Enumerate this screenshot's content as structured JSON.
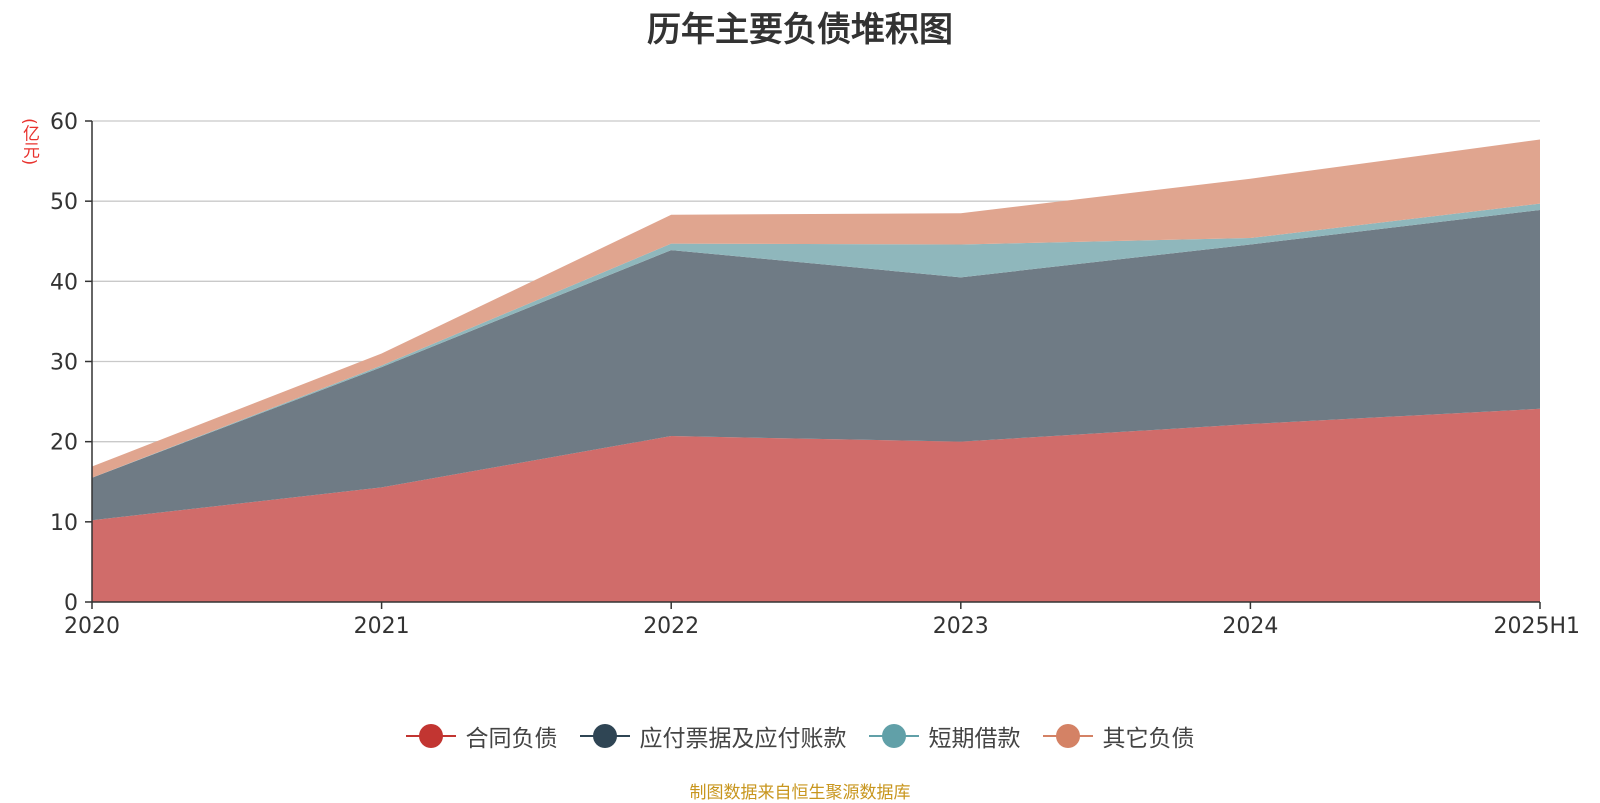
{
  "chart_data": {
    "type": "area",
    "stacked": true,
    "title": "历年主要负债堆积图",
    "y_unit": "(亿元)",
    "source_note": "制图数据来自恒生聚源数据库",
    "categories": [
      "2020",
      "2021",
      "2022",
      "2023",
      "2024",
      "2025H1"
    ],
    "ylim": [
      0,
      60
    ],
    "yticks": [
      0,
      10,
      20,
      30,
      40,
      50,
      60
    ],
    "grid": true,
    "legend_position": "bottom-center",
    "series": [
      {
        "name": "合同负债",
        "color": "#c23531",
        "fill": "#d06c6a",
        "values": [
          10.2,
          14.3,
          20.7,
          20.0,
          22.2,
          24.1
        ]
      },
      {
        "name": "应付票据及应付账款",
        "color": "#2f4554",
        "fill": "#6f7b85",
        "values": [
          5.3,
          15.0,
          23.2,
          20.5,
          22.4,
          24.8
        ]
      },
      {
        "name": "短期借款",
        "color": "#61a0a8",
        "fill": "#8fb7bc",
        "values": [
          0.0,
          0.2,
          0.8,
          4.1,
          0.8,
          0.8
        ]
      },
      {
        "name": "其它负债",
        "color": "#d48265",
        "fill": "#e0a58f",
        "values": [
          1.4,
          1.5,
          3.6,
          3.9,
          7.4,
          8.0
        ]
      }
    ]
  }
}
